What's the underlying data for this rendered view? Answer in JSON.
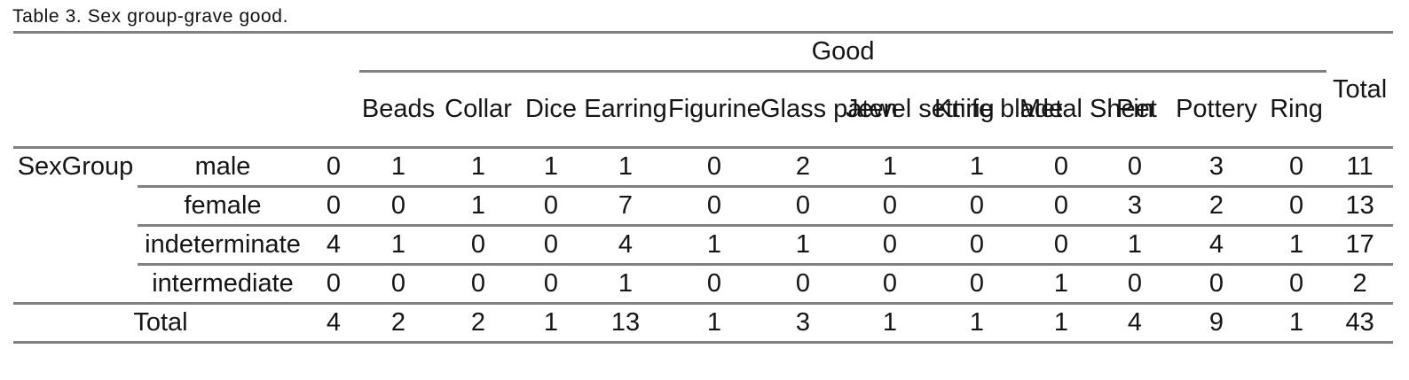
{
  "caption": "Table 3. Sex group-grave good.",
  "table": {
    "corner_label": "SexGroup",
    "group_header": "Good",
    "total_column_label": "Total",
    "total_row_label": "Total",
    "good_columns": [
      "",
      "Beads",
      "Collar",
      "Dice",
      "Earring",
      "Figurine",
      "Glass\npaten",
      "Jewel\nsetting",
      "Knife\nblade",
      "Metal\nSheet",
      "Pin",
      "Pottery",
      "Ring"
    ],
    "rows": [
      {
        "label": "male",
        "values": [
          "0",
          "1",
          "1",
          "1",
          "1",
          "0",
          "2",
          "1",
          "1",
          "0",
          "0",
          "3",
          "0"
        ],
        "total": "11"
      },
      {
        "label": "female",
        "values": [
          "0",
          "0",
          "1",
          "0",
          "7",
          "0",
          "0",
          "0",
          "0",
          "0",
          "3",
          "2",
          "0"
        ],
        "total": "13"
      },
      {
        "label": "indeterminate",
        "values": [
          "4",
          "1",
          "0",
          "0",
          "4",
          "1",
          "1",
          "0",
          "0",
          "0",
          "1",
          "4",
          "1"
        ],
        "total": "17"
      },
      {
        "label": "intermediate",
        "values": [
          "0",
          "0",
          "0",
          "0",
          "1",
          "0",
          "0",
          "0",
          "0",
          "1",
          "0",
          "0",
          "0"
        ],
        "total": "2"
      }
    ],
    "total_row": {
      "values": [
        "4",
        "2",
        "2",
        "1",
        "13",
        "1",
        "3",
        "1",
        "1",
        "1",
        "4",
        "9",
        "1"
      ],
      "total": "43"
    }
  },
  "colors": {
    "rule": "#808080",
    "text": "#151515"
  }
}
